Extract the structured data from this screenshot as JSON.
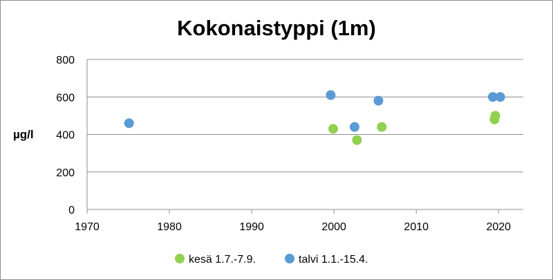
{
  "chart_data": {
    "type": "scatter",
    "title": "Kokonaistyppi (1m)",
    "xlabel": "",
    "ylabel": "µg/l",
    "xlim": [
      1970,
      2023
    ],
    "ylim": [
      0,
      800
    ],
    "x_ticks": [
      1970,
      1980,
      1990,
      2000,
      2010,
      2020
    ],
    "y_ticks": [
      0,
      200,
      400,
      600,
      800
    ],
    "grid": "horizontal",
    "legend_position": "bottom",
    "series": [
      {
        "name": "kesä 1.7.-7.9.",
        "color": "#92d050",
        "points": [
          {
            "x": 1999.9,
            "y": 430
          },
          {
            "x": 2002.8,
            "y": 370
          },
          {
            "x": 2005.8,
            "y": 440
          },
          {
            "x": 2019.6,
            "y": 500
          },
          {
            "x": 2019.5,
            "y": 480
          }
        ]
      },
      {
        "name": "talvi 1.1.-15.4.",
        "color": "#5b9bd5",
        "points": [
          {
            "x": 1975.1,
            "y": 460
          },
          {
            "x": 1999.6,
            "y": 610
          },
          {
            "x": 2002.5,
            "y": 440
          },
          {
            "x": 2005.4,
            "y": 580
          },
          {
            "x": 2019.3,
            "y": 600
          },
          {
            "x": 2020.2,
            "y": 600
          }
        ]
      }
    ]
  }
}
